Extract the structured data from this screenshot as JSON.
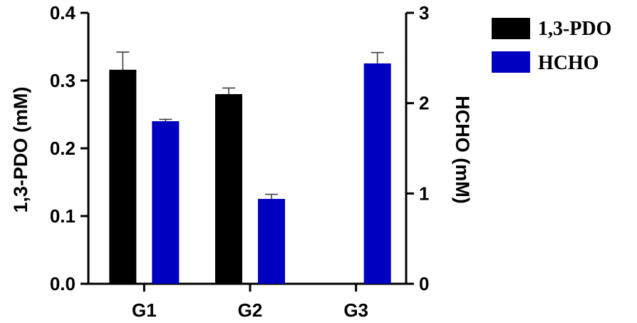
{
  "chart_data": {
    "type": "bar",
    "categories": [
      "G1",
      "G2",
      "G3"
    ],
    "left_axis": {
      "label": "1,3-PDO (mM)",
      "ylim": [
        0,
        0.4
      ],
      "ticks": [
        0.0,
        0.1,
        0.2,
        0.3,
        0.4
      ],
      "tick_labels": [
        "0.0",
        "0.1",
        "0.2",
        "0.3",
        "0.4"
      ]
    },
    "right_axis": {
      "label": "HCHO (mM)",
      "ylim": [
        0,
        3
      ],
      "ticks": [
        0,
        1,
        2,
        3
      ],
      "tick_labels": [
        "0",
        "1",
        "2",
        "3"
      ]
    },
    "series": [
      {
        "name": "1,3-PDO",
        "axis": "left",
        "color": "#000000",
        "values": [
          0.316,
          0.28,
          0
        ],
        "errors": [
          0.026,
          0.009,
          0
        ]
      },
      {
        "name": "HCHO",
        "axis": "right",
        "color": "#0000c0",
        "values": [
          1.8,
          0.94,
          2.44
        ],
        "errors": [
          0.02,
          0.05,
          0.12
        ]
      }
    ],
    "legend": "top-right",
    "grid": false
  }
}
